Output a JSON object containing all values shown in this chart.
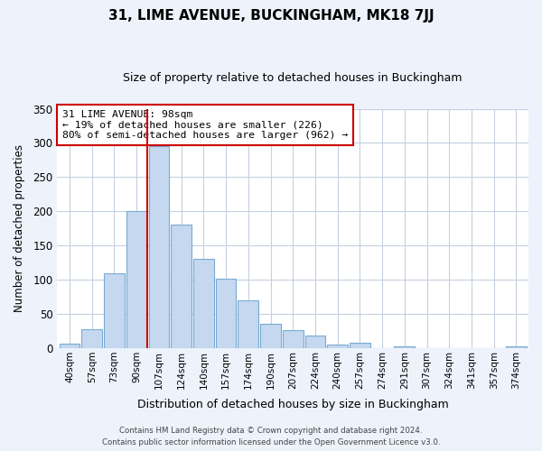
{
  "title": "31, LIME AVENUE, BUCKINGHAM, MK18 7JJ",
  "subtitle": "Size of property relative to detached houses in Buckingham",
  "xlabel": "Distribution of detached houses by size in Buckingham",
  "ylabel": "Number of detached properties",
  "bar_labels": [
    "40sqm",
    "57sqm",
    "73sqm",
    "90sqm",
    "107sqm",
    "124sqm",
    "140sqm",
    "157sqm",
    "174sqm",
    "190sqm",
    "207sqm",
    "224sqm",
    "240sqm",
    "257sqm",
    "274sqm",
    "291sqm",
    "307sqm",
    "324sqm",
    "341sqm",
    "357sqm",
    "374sqm"
  ],
  "bar_values": [
    7,
    28,
    110,
    200,
    295,
    180,
    130,
    102,
    70,
    35,
    27,
    18,
    5,
    8,
    0,
    2,
    0,
    0,
    0,
    0,
    2
  ],
  "bar_color": "#c5d8f0",
  "bar_edge_color": "#7aaad0",
  "vline_color": "#cc0000",
  "annotation_lines": [
    "31 LIME AVENUE: 98sqm",
    "← 19% of detached houses are smaller (226)",
    "80% of semi-detached houses are larger (962) →"
  ],
  "ylim": [
    0,
    350
  ],
  "yticks": [
    0,
    50,
    100,
    150,
    200,
    250,
    300,
    350
  ],
  "footer1": "Contains HM Land Registry data © Crown copyright and database right 2024.",
  "footer2": "Contains public sector information licensed under the Open Government Licence v3.0.",
  "background_color": "#edf2fb",
  "plot_bg_color": "#ffffff",
  "grid_color": "#c5d0e0"
}
